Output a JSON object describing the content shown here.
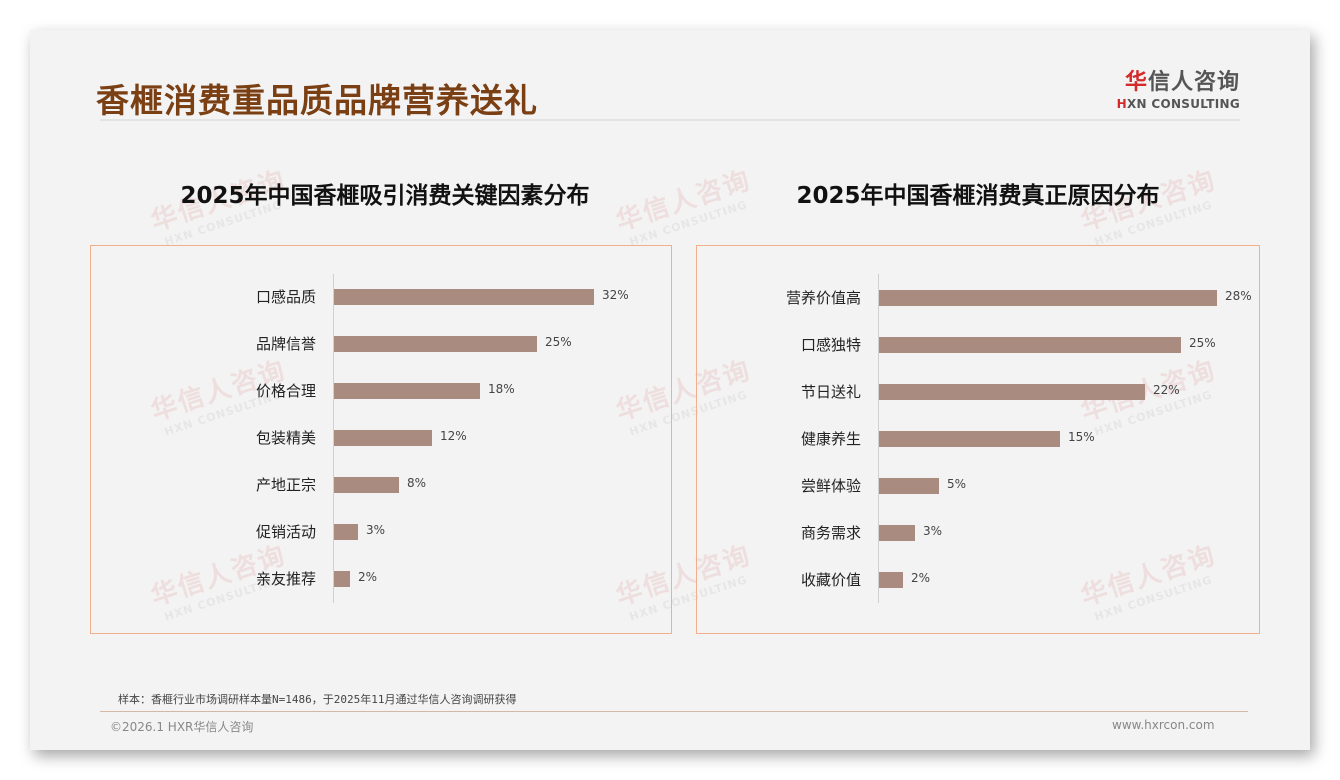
{
  "slide": {
    "title": "香榧消费重品质品牌营养送礼",
    "logo": {
      "cn_accent": "华",
      "cn_rest": "信人咨询",
      "en_accent": "H",
      "en_rest": "XN CONSULTING"
    },
    "watermark": {
      "cn": "华信人咨询",
      "en": "HXN CONSULTING"
    },
    "sample_note": "样本：香榧行业市场调研样本量N=1486，于2025年11月通过华信人咨询调研获得",
    "footer_left": "©2026.1 HXR华信人咨询",
    "footer_right": "www.hxrcon.com",
    "colors": {
      "title": "#7b3f14",
      "bar": "#a98b80",
      "box_border": "#f2b08a",
      "logo_accent": "#d42a2a"
    }
  },
  "chart_data": [
    {
      "type": "bar",
      "orientation": "horizontal",
      "title": "2025年中国香榧吸引消费关键因素分布",
      "categories": [
        "口感品质",
        "品牌信誉",
        "价格合理",
        "包装精美",
        "产地正宗",
        "促销活动",
        "亲友推荐"
      ],
      "values": [
        32,
        25,
        18,
        12,
        8,
        3,
        2
      ],
      "labels": [
        "32%",
        "25%",
        "18%",
        "12%",
        "8%",
        "3%",
        "2%"
      ],
      "unit": "%",
      "xlabel": "",
      "ylabel": "",
      "grid": false,
      "legend": null
    },
    {
      "type": "bar",
      "orientation": "horizontal",
      "title": "2025年中国香榧消费真正原因分布",
      "categories": [
        "营养价值高",
        "口感独特",
        "节日送礼",
        "健康养生",
        "尝鲜体验",
        "商务需求",
        "收藏价值"
      ],
      "values": [
        28,
        25,
        22,
        15,
        5,
        3,
        2
      ],
      "labels": [
        "28%",
        "25%",
        "22%",
        "15%",
        "5%",
        "3%",
        "2%"
      ],
      "unit": "%",
      "xlabel": "",
      "ylabel": "",
      "grid": false,
      "legend": null
    }
  ]
}
